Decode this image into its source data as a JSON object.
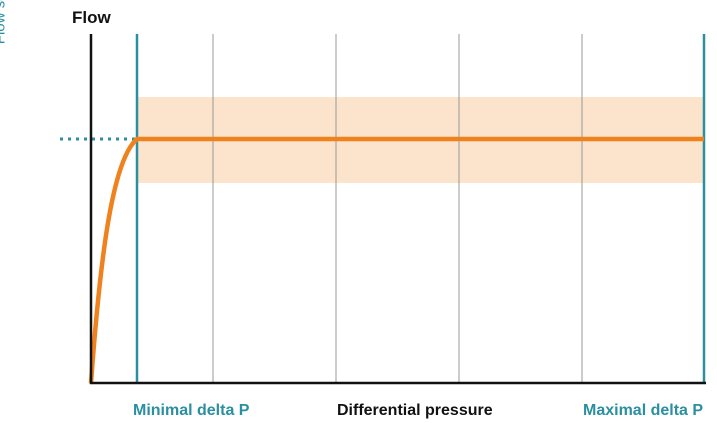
{
  "diagram": {
    "y_axis_label": "Flow",
    "setpoint_label": "Flow setpoint",
    "x_axis_label": "Differential pressure",
    "min_label": "Minimal delta P",
    "max_label": "Maximal delta P",
    "colors": {
      "curve": "#f0821e",
      "band": "#fbe3cc",
      "accent": "#2a8fa0",
      "axis": "#111111",
      "grid": "#9a9a9a"
    }
  }
}
